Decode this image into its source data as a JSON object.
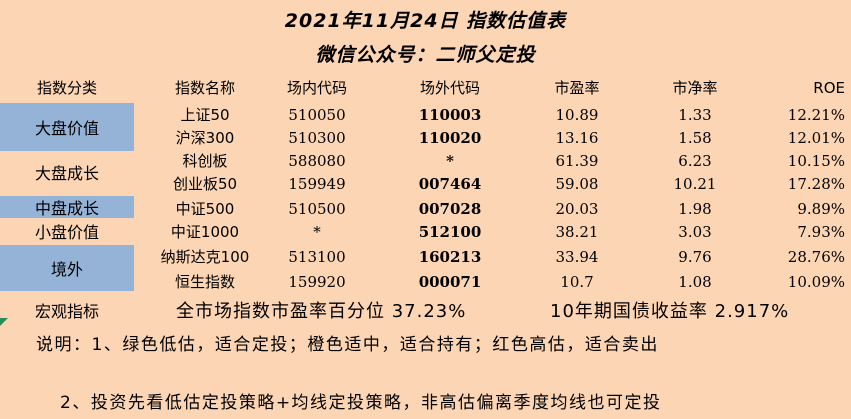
{
  "title": "2021年11月24日 指数估值表",
  "subtitle": "微信公众号：二师父定投",
  "headers": [
    "指数分类",
    "指数名称",
    "场内代码",
    "场外代码",
    "市盈率",
    "市净率",
    "ROE"
  ],
  "categories": [
    {
      "label": "大盘价值",
      "highlight": true
    },
    {
      "label": "大盘成长",
      "highlight": false
    },
    {
      "label": "中盘成长",
      "highlight": true
    },
    {
      "label": "小盘价值",
      "highlight": false
    },
    {
      "label": "境外",
      "highlight": true
    }
  ],
  "rows": [
    {
      "name": "上证50",
      "onsite": "510050",
      "offsite": "110003",
      "pe": "10.89",
      "pb": "1.33",
      "roe": "12.21%"
    },
    {
      "name": "沪深300",
      "onsite": "510300",
      "offsite": "110020",
      "pe": "13.16",
      "pb": "1.58",
      "roe": "12.01%"
    },
    {
      "name": "科创板",
      "onsite": "588080",
      "offsite": "*",
      "pe": "61.39",
      "pb": "6.23",
      "roe": "10.15%"
    },
    {
      "name": "创业板50",
      "onsite": "159949",
      "offsite": "007464",
      "pe": "59.08",
      "pb": "10.21",
      "roe": "17.28%"
    },
    {
      "name": "中证500",
      "onsite": "510500",
      "offsite": "007028",
      "pe": "20.03",
      "pb": "1.98",
      "roe": "9.89%"
    },
    {
      "name": "中证1000",
      "onsite": "*",
      "offsite": "512100",
      "pe": "38.21",
      "pb": "3.03",
      "roe": "7.93%"
    },
    {
      "name": "纳斯达克100",
      "onsite": "513100",
      "offsite": "160213",
      "pe": "33.94",
      "pb": "9.76",
      "roe": "28.76%"
    },
    {
      "name": "恒生指数",
      "onsite": "159920",
      "offsite": "000071",
      "pe": "10.7",
      "pb": "1.08",
      "roe": "10.09%"
    }
  ],
  "macro": {
    "label": "宏观指标",
    "pe_percentile": "全市场指数市盈率百分位 37.23%",
    "bond_yield": "10年期国债收益率 2.917%"
  },
  "notes": {
    "line1": "说明：1、绿色低估，适合定投；橙色适中，适合持有；红色高估，适合卖出",
    "line2": "2、投资先看低估定投策略+均线定投策略，非高估偏离季度均线也可定投"
  }
}
